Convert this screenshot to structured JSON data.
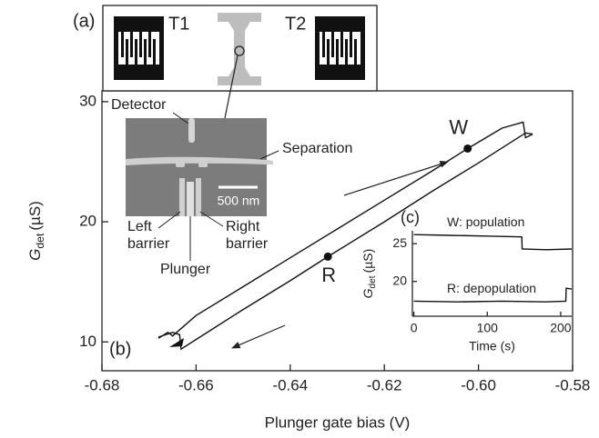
{
  "schematic": {
    "panel_label": "(a)",
    "t1": "T1",
    "t2": "T2",
    "detector": "Detector",
    "separation": "Separation",
    "scale": "500 nm",
    "left_barrier": [
      "Left",
      "barrier"
    ],
    "right_barrier": [
      "Right",
      "barrier"
    ],
    "plunger": "Plunger"
  },
  "chart_data": [
    {
      "type": "line",
      "panel_label": "(b)",
      "x_label": "Plunger gate bias (V)",
      "y_label": {
        "symbol": "G",
        "subscript": "det",
        "unit": "(µS)"
      },
      "xlim": [
        -0.68,
        -0.58
      ],
      "xticks": [
        -0.68,
        -0.66,
        -0.64,
        -0.62,
        {
          "value": -0.6,
          "label": "-0.60"
        },
        -0.58
      ],
      "ylim": [
        7.6,
        30.9
      ],
      "yticks": [
        10,
        20,
        30
      ],
      "series": [
        {
          "color": "#111",
          "x": [
            -0.668,
            -0.666,
            -0.665,
            -0.66,
            -0.65,
            -0.64,
            -0.63,
            -0.62,
            -0.61,
            -0.6023,
            -0.595,
            -0.5905,
            -0.59,
            -0.5885
          ],
          "values": [
            10.3,
            10.8,
            10.5,
            12.2,
            14.6,
            17.0,
            19.4,
            21.8,
            24.2,
            26.1,
            27.8,
            28.3,
            27.0,
            27.3
          ]
        },
        {
          "color": "#111",
          "x": [
            -0.5885,
            -0.59,
            -0.6,
            -0.61,
            -0.62,
            -0.632,
            -0.64,
            -0.65,
            -0.66,
            -0.6632,
            -0.6635,
            -0.665,
            -0.668
          ],
          "values": [
            27.3,
            27.4,
            24.9,
            22.5,
            20.0,
            17.1,
            15.1,
            12.7,
            10.2,
            9.4,
            10.6,
            10.8,
            10.4
          ]
        }
      ],
      "points": [
        {
          "label": "W",
          "x": -0.6023,
          "y": 26.1
        },
        {
          "label": "R",
          "x": -0.632,
          "y": 17.1
        }
      ]
    },
    {
      "type": "line",
      "panel_label": "(c)",
      "x_label": "Time (s)",
      "y_label": {
        "symbol": "G",
        "subscript": "det",
        "unit": "(µS)"
      },
      "xlim": [
        -2,
        215
      ],
      "xticks": [
        0,
        100,
        200
      ],
      "ylim": [
        15.4,
        26.7
      ],
      "yticks": [
        20,
        25
      ],
      "series": [
        {
          "name": "W: population",
          "color": "#111",
          "x": [
            0,
            50,
            100,
            147,
            147.5,
            180,
            215
          ],
          "values": [
            26.2,
            26.1,
            26.0,
            25.9,
            24.3,
            24.2,
            24.3
          ]
        },
        {
          "name": "R: depopulation",
          "color": "#111",
          "x": [
            0,
            60,
            120,
            180,
            207,
            207.5,
            215
          ],
          "values": [
            17.4,
            17.3,
            17.4,
            17.3,
            17.4,
            19.1,
            19.0
          ]
        }
      ]
    }
  ]
}
